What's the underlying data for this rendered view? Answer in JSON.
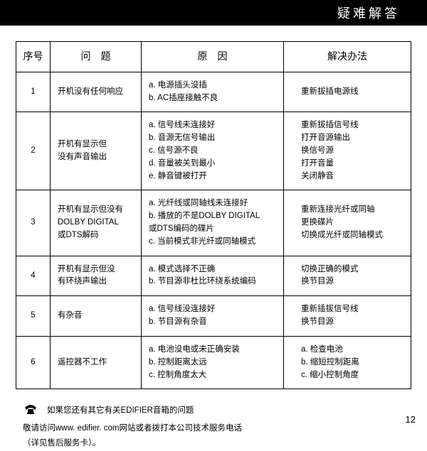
{
  "header": {
    "title": "疑难解答"
  },
  "table": {
    "headers": {
      "num": "序号",
      "problem": "问题",
      "cause": "原因",
      "solution": "解决办法"
    },
    "rows": [
      {
        "num": "1",
        "problem": "开机没有任何响应",
        "cause": "a. 电源插头没插\nb. AC插座接触不良",
        "solution": "重新拔插电源线"
      },
      {
        "num": "2",
        "problem": "开机有显示但\n没有声音输出",
        "cause": "a. 信号线未连接好\nb. 音源无信号输出\nc. 信号源不良\nd. 音量被关到最小\ne. 静音键被打开",
        "solution": "重新拔插信号线\n打开音源输出\n换信号源\n打开音量\n关闭静音"
      },
      {
        "num": "3",
        "problem": "开机有显示但没有\nDOLBY DIGITAL\n或DTS解码",
        "cause": "a. 光纤线或同轴线未连接好\nb. 播放的不是DOLBY DIGITAL\n    或DTS编码的碟片\nc. 当前模式非光纤或同轴模式",
        "solution": "重新连接光纤或同轴\n更换碟片\n切换成光纤或同轴模式"
      },
      {
        "num": "4",
        "problem": "开机有显示但没\n有环绕声输出",
        "cause": "a. 模式选择不正确\nb. 节目源非杜比环绕系统编码",
        "solution": "切换正确的模式\n换节目源"
      },
      {
        "num": "5",
        "problem": "有杂音",
        "cause": "a. 信号线没连接好\nb. 节目源有杂音",
        "solution": "重新插拔信号线\n换节目源"
      },
      {
        "num": "6",
        "problem": "遥控器不工作",
        "cause": "a. 电池没电或未正确安装\nb. 控制距离太远\nc. 控制角度太大",
        "solution": "a. 检查电池\nb. 缩短控制距离\nc. 缩小控制角度"
      }
    ]
  },
  "footer": {
    "line1": "如果您还有其它有关EDIFIER音箱的问题",
    "line2": "敬请访问www. edifier. com网站或者拨打本公司技术服务电话",
    "line3": "（详见售后服务卡）。"
  },
  "pageNumber": "12"
}
